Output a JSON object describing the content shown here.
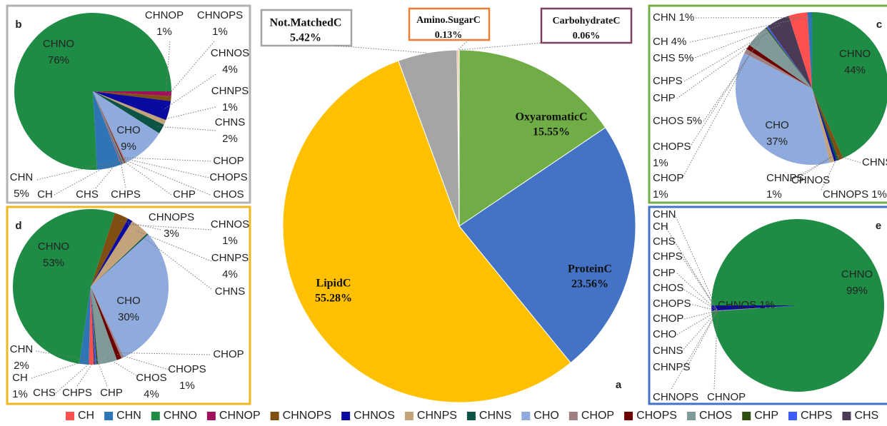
{
  "chart_data": [
    {
      "type": "pie",
      "panel": "a",
      "categories": [
        "OxyaromaticC",
        "ProteinC",
        "LipidC",
        "Not.MatchedC",
        "Amino.SugarC",
        "CarbohydrateC"
      ],
      "values": [
        15.55,
        23.56,
        55.28,
        5.42,
        0.13,
        0.06
      ],
      "value_labels": [
        "15.55%",
        "23.56%",
        "55.28%",
        "5.42%",
        "0.13%",
        "0.06%"
      ],
      "colors": [
        "#70ad47",
        "#4472c4",
        "#ffc000",
        "#a5a5a5",
        "#ed7d31",
        "#7f3f5f"
      ]
    },
    {
      "type": "pie",
      "panel": "b",
      "categories": [
        "CHNOP",
        "CHNOPS",
        "CHNOS",
        "CHNPS",
        "CHNS",
        "CHO",
        "CHOP",
        "CHOPS",
        "CHOS",
        "CHP",
        "CHPS",
        "CHS",
        "CH",
        "CHN",
        "CHNO"
      ],
      "values": [
        1,
        1,
        4,
        1,
        2,
        9,
        0.3,
        0.2,
        0.3,
        0.1,
        0.1,
        0.1,
        0.1,
        5,
        76
      ],
      "value_labels": [
        "1%",
        "1%",
        "4%",
        "1%",
        "2%",
        "9%",
        null,
        null,
        null,
        null,
        null,
        null,
        null,
        "5%",
        "76%"
      ]
    },
    {
      "type": "pie",
      "panel": "c",
      "categories": [
        "CHNO",
        "CHNOPS",
        "CHNS",
        "CHNOS",
        "CHNPS",
        "CHO",
        "CHOP",
        "CHOPS",
        "CHOS",
        "CHP",
        "CHPS",
        "CHS",
        "CH",
        "CHN"
      ],
      "values": [
        44,
        1,
        0.5,
        0.5,
        1,
        37,
        1,
        1,
        5,
        0.3,
        0.3,
        5,
        4,
        1
      ],
      "value_labels": [
        "44%",
        "1%",
        null,
        null,
        "1%",
        "37%",
        "1%",
        "1%",
        "5%",
        null,
        null,
        "5%",
        "4%",
        "1%"
      ]
    },
    {
      "type": "pie",
      "panel": "d",
      "categories": [
        "CHNOPS",
        "CHNOS",
        "CHNPS",
        "CHNS",
        "CHO",
        "CHOP",
        "CHOPS",
        "CHOS",
        "CHP",
        "CHPS",
        "CHS",
        "CH",
        "CHN",
        "CHNO"
      ],
      "values": [
        3,
        1,
        4,
        0.3,
        30,
        0.5,
        1,
        4,
        0.3,
        0.3,
        0.3,
        1,
        2,
        53
      ],
      "value_labels": [
        "3%",
        "1%",
        "4%",
        null,
        "30%",
        null,
        "1%",
        "4%",
        null,
        null,
        null,
        "1%",
        "2%",
        "53%"
      ]
    },
    {
      "type": "pie",
      "panel": "e",
      "categories": [
        "CHNOS",
        "CHNO",
        "CHN",
        "CH",
        "CHS",
        "CHPS",
        "CHP",
        "CHOS",
        "CHOPS",
        "CHOP",
        "CHO",
        "CHNS",
        "CHNPS",
        "CHNOPS",
        "CHNOP"
      ],
      "values": [
        1,
        99,
        0.01,
        0.01,
        0.01,
        0.01,
        0.01,
        0.01,
        0.01,
        0.01,
        0.01,
        0.01,
        0.01,
        0.01,
        0.01
      ],
      "value_labels": [
        "1%",
        "99%",
        null,
        null,
        null,
        null,
        null,
        null,
        null,
        null,
        null,
        null,
        null,
        null,
        null
      ]
    }
  ],
  "legend": [
    {
      "name": "CH",
      "color": "#ff5050"
    },
    {
      "name": "CHN",
      "color": "#2e75b6"
    },
    {
      "name": "CHNO",
      "color": "#1e8c45"
    },
    {
      "name": "CHNOP",
      "color": "#a0105a"
    },
    {
      "name": "CHNOPS",
      "color": "#7f4f12"
    },
    {
      "name": "CHNOS",
      "color": "#0a0aa0"
    },
    {
      "name": "CHNPS",
      "color": "#c4a27a"
    },
    {
      "name": "CHNS",
      "color": "#0b5345"
    },
    {
      "name": "CHO",
      "color": "#8faadc"
    },
    {
      "name": "CHOP",
      "color": "#a08080"
    },
    {
      "name": "CHOPS",
      "color": "#6b0000"
    },
    {
      "name": "CHOS",
      "color": "#7f9a98"
    },
    {
      "name": "CHP",
      "color": "#2f4f10"
    },
    {
      "name": "CHPS",
      "color": "#3d5cff"
    },
    {
      "name": "CHS",
      "color": "#4a3a55"
    }
  ]
}
